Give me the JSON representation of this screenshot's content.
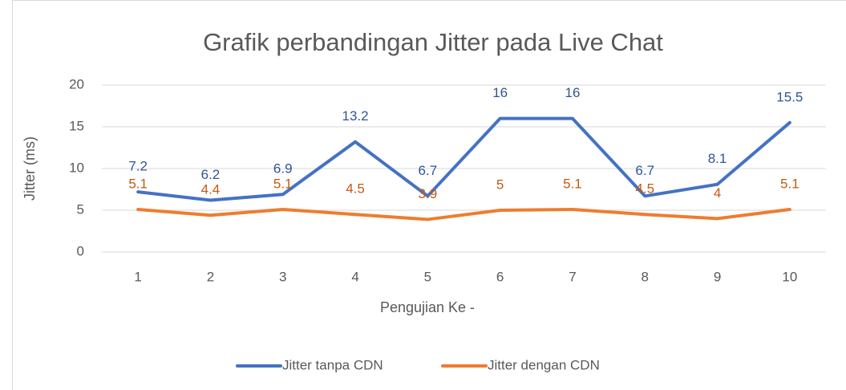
{
  "chart_data": {
    "type": "line",
    "title": "Grafik perbandingan Jitter pada Live Chat",
    "x_label": "Pengujian Ke -",
    "y_label": "Jitter (ms)",
    "categories": [
      "1",
      "2",
      "3",
      "4",
      "5",
      "6",
      "7",
      "8",
      "9",
      "10"
    ],
    "series": [
      {
        "name": "Jitter tanpa CDN",
        "color": "#4472c4",
        "label_color": "#2f5597",
        "values": [
          7.2,
          6.2,
          6.9,
          13.2,
          6.7,
          16,
          16,
          6.7,
          8.1,
          15.5
        ]
      },
      {
        "name": "Jitter dengan CDN",
        "color": "#ed7d31",
        "label_color": "#c55a11",
        "values": [
          5.1,
          4.4,
          5.1,
          4.5,
          3.9,
          5,
          5.1,
          4.5,
          4,
          5.1
        ]
      }
    ],
    "ylim": [
      0,
      20
    ],
    "yticks": [
      0,
      5,
      10,
      15,
      20
    ],
    "grid": true,
    "legend": "bottom"
  }
}
